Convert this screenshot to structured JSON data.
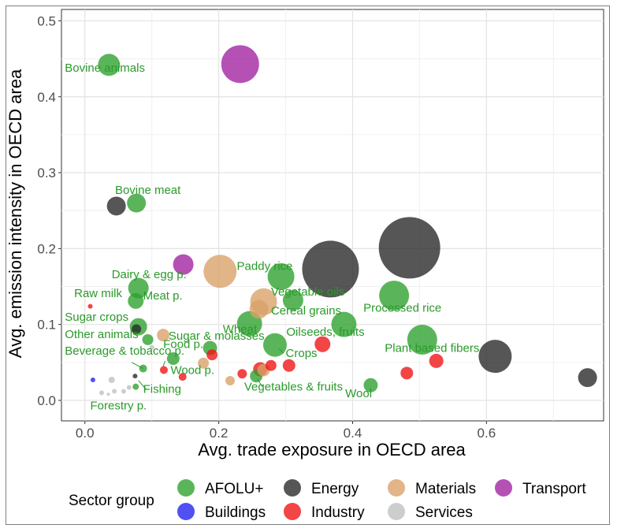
{
  "chart_data": {
    "type": "scatter",
    "title": "",
    "xlabel": "Avg. trade exposure in OECD area",
    "ylabel": "Avg. emission intensity in OECD area",
    "xlim": [
      -0.035,
      0.775
    ],
    "ylim": [
      -0.027,
      0.515
    ],
    "xticks": [
      0.0,
      0.2,
      0.4,
      0.6
    ],
    "xtick_labels": [
      "0.0",
      "0.2",
      "0.4",
      "0.6"
    ],
    "yticks": [
      0.0,
      0.1,
      0.2,
      0.3,
      0.4,
      0.5
    ],
    "ytick_labels": [
      "0.0",
      "0.1",
      "0.2",
      "0.3",
      "0.4",
      "0.5"
    ],
    "grid": true,
    "legend": {
      "title": "Sector group",
      "position": "bottom",
      "entries": [
        {
          "name": "AFOLU+",
          "color": "#2ca02c"
        },
        {
          "name": "Energy",
          "color": "#262626"
        },
        {
          "name": "Materials",
          "color": "#d9a066"
        },
        {
          "name": "Transport",
          "color": "#a020a0"
        },
        {
          "name": "Buildings",
          "color": "#1f1ff0"
        },
        {
          "name": "Industry",
          "color": "#ee1111"
        },
        {
          "name": "Services",
          "color": "#bfbfbf"
        }
      ]
    },
    "group_colors": {
      "AFOLU+": "#2ca02c",
      "Energy": "#262626",
      "Materials": "#d9a066",
      "Transport": "#a020a0",
      "Buildings": "#1f1ff0",
      "Industry": "#ee1111",
      "Services": "#bfbfbf"
    },
    "points": [
      {
        "x": 0.036,
        "y": 0.442,
        "size": 14,
        "group": "AFOLU+"
      },
      {
        "x": 0.077,
        "y": 0.26,
        "size": 12,
        "group": "AFOLU+"
      },
      {
        "x": 0.08,
        "y": 0.148,
        "size": 13,
        "group": "AFOLU+"
      },
      {
        "x": 0.076,
        "y": 0.131,
        "size": 10,
        "group": "AFOLU+"
      },
      {
        "x": 0.08,
        "y": 0.097,
        "size": 11,
        "group": "AFOLU+"
      },
      {
        "x": 0.094,
        "y": 0.08,
        "size": 7,
        "group": "AFOLU+"
      },
      {
        "x": 0.087,
        "y": 0.042,
        "size": 5,
        "group": "AFOLU+"
      },
      {
        "x": 0.076,
        "y": 0.018,
        "size": 4,
        "group": "AFOLU+"
      },
      {
        "x": 0.132,
        "y": 0.055,
        "size": 8,
        "group": "AFOLU+"
      },
      {
        "x": 0.187,
        "y": 0.069,
        "size": 9,
        "group": "AFOLU+"
      },
      {
        "x": 0.246,
        "y": 0.101,
        "size": 16,
        "group": "AFOLU+"
      },
      {
        "x": 0.256,
        "y": 0.032,
        "size": 8,
        "group": "AFOLU+"
      },
      {
        "x": 0.284,
        "y": 0.073,
        "size": 15,
        "group": "AFOLU+"
      },
      {
        "x": 0.293,
        "y": 0.163,
        "size": 17,
        "group": "AFOLU+"
      },
      {
        "x": 0.311,
        "y": 0.132,
        "size": 13,
        "group": "AFOLU+"
      },
      {
        "x": 0.387,
        "y": 0.1,
        "size": 16,
        "group": "AFOLU+"
      },
      {
        "x": 0.427,
        "y": 0.02,
        "size": 9,
        "group": "AFOLU+"
      },
      {
        "x": 0.462,
        "y": 0.138,
        "size": 19,
        "group": "AFOLU+"
      },
      {
        "x": 0.504,
        "y": 0.08,
        "size": 19,
        "group": "AFOLU+"
      },
      {
        "x": 0.047,
        "y": 0.256,
        "size": 12,
        "group": "Energy"
      },
      {
        "x": 0.077,
        "y": 0.094,
        "size": 6,
        "group": "Energy"
      },
      {
        "x": 0.075,
        "y": 0.032,
        "size": 3,
        "group": "Energy"
      },
      {
        "x": 0.367,
        "y": 0.173,
        "size": 36,
        "group": "Energy"
      },
      {
        "x": 0.485,
        "y": 0.201,
        "size": 39,
        "group": "Energy"
      },
      {
        "x": 0.613,
        "y": 0.058,
        "size": 21,
        "group": "Energy"
      },
      {
        "x": 0.751,
        "y": 0.03,
        "size": 12,
        "group": "Energy"
      },
      {
        "x": 0.202,
        "y": 0.17,
        "size": 21,
        "group": "Materials"
      },
      {
        "x": 0.267,
        "y": 0.13,
        "size": 17,
        "group": "Materials"
      },
      {
        "x": 0.26,
        "y": 0.12,
        "size": 12,
        "group": "Materials"
      },
      {
        "x": 0.117,
        "y": 0.086,
        "size": 8,
        "group": "Materials"
      },
      {
        "x": 0.177,
        "y": 0.049,
        "size": 7,
        "group": "Materials"
      },
      {
        "x": 0.217,
        "y": 0.026,
        "size": 6,
        "group": "Materials"
      },
      {
        "x": 0.267,
        "y": 0.04,
        "size": 8,
        "group": "Materials"
      },
      {
        "x": 0.232,
        "y": 0.443,
        "size": 24,
        "group": "Transport"
      },
      {
        "x": 0.147,
        "y": 0.179,
        "size": 13,
        "group": "Transport"
      },
      {
        "x": 0.012,
        "y": 0.027,
        "size": 3,
        "group": "Buildings"
      },
      {
        "x": 0.008,
        "y": 0.124,
        "size": 3,
        "group": "Industry"
      },
      {
        "x": 0.118,
        "y": 0.04,
        "size": 5,
        "group": "Industry"
      },
      {
        "x": 0.146,
        "y": 0.031,
        "size": 5,
        "group": "Industry"
      },
      {
        "x": 0.19,
        "y": 0.06,
        "size": 7,
        "group": "Industry"
      },
      {
        "x": 0.235,
        "y": 0.035,
        "size": 6,
        "group": "Industry"
      },
      {
        "x": 0.262,
        "y": 0.041,
        "size": 9,
        "group": "Industry"
      },
      {
        "x": 0.278,
        "y": 0.046,
        "size": 7,
        "group": "Industry"
      },
      {
        "x": 0.305,
        "y": 0.046,
        "size": 8,
        "group": "Industry"
      },
      {
        "x": 0.355,
        "y": 0.074,
        "size": 10,
        "group": "Industry"
      },
      {
        "x": 0.481,
        "y": 0.036,
        "size": 8,
        "group": "Industry"
      },
      {
        "x": 0.525,
        "y": 0.052,
        "size": 9,
        "group": "Industry"
      },
      {
        "x": 0.04,
        "y": 0.027,
        "size": 4,
        "group": "Services"
      },
      {
        "x": 0.044,
        "y": 0.012,
        "size": 3,
        "group": "Services"
      },
      {
        "x": 0.025,
        "y": 0.01,
        "size": 3,
        "group": "Services"
      },
      {
        "x": 0.058,
        "y": 0.012,
        "size": 3,
        "group": "Services"
      },
      {
        "x": 0.066,
        "y": 0.017,
        "size": 3,
        "group": "Services"
      },
      {
        "x": 0.035,
        "y": 0.008,
        "size": 2,
        "group": "Services"
      },
      {
        "x": 0.1,
        "y": 0.07,
        "size": 3,
        "group": "Services"
      }
    ],
    "annotations": [
      {
        "text": "Bovine animals",
        "x": -0.03,
        "y": 0.433
      },
      {
        "text": "Bovine meat",
        "x": 0.045,
        "y": 0.272
      },
      {
        "text": "Dairy & egg p.",
        "x": 0.04,
        "y": 0.161
      },
      {
        "text": "Raw milk",
        "x": -0.016,
        "y": 0.136
      },
      {
        "text": "Meat p.",
        "x": 0.087,
        "y": 0.133
      },
      {
        "text": "Sugar crops",
        "x": -0.03,
        "y": 0.105
      },
      {
        "text": "Other animals",
        "x": -0.03,
        "y": 0.082
      },
      {
        "text": "Beverage & tobacco p.",
        "x": -0.03,
        "y": 0.06
      },
      {
        "text": "Food p.",
        "x": 0.117,
        "y": 0.069
      },
      {
        "text": "Sugar & molasses",
        "x": 0.125,
        "y": 0.08
      },
      {
        "text": "Wood p.",
        "x": 0.128,
        "y": 0.035
      },
      {
        "text": "Fishing",
        "x": 0.087,
        "y": 0.01
      },
      {
        "text": "Forestry p.",
        "x": 0.008,
        "y": -0.012
      },
      {
        "text": "Paddy rice",
        "x": 0.227,
        "y": 0.172
      },
      {
        "text": "Vegetable oils",
        "x": 0.278,
        "y": 0.138
      },
      {
        "text": "Cereal grains",
        "x": 0.278,
        "y": 0.113
      },
      {
        "text": "Wheat",
        "x": 0.206,
        "y": 0.089
      },
      {
        "text": "Oilseeds, fruits",
        "x": 0.301,
        "y": 0.085
      },
      {
        "text": "Crops",
        "x": 0.3,
        "y": 0.057
      },
      {
        "text": "Vegetables & fruits",
        "x": 0.238,
        "y": 0.013
      },
      {
        "text": "Processed rice",
        "x": 0.416,
        "y": 0.117
      },
      {
        "text": "Plant based fibers",
        "x": 0.448,
        "y": 0.064
      },
      {
        "text": "Wool",
        "x": 0.389,
        "y": 0.004
      }
    ]
  }
}
